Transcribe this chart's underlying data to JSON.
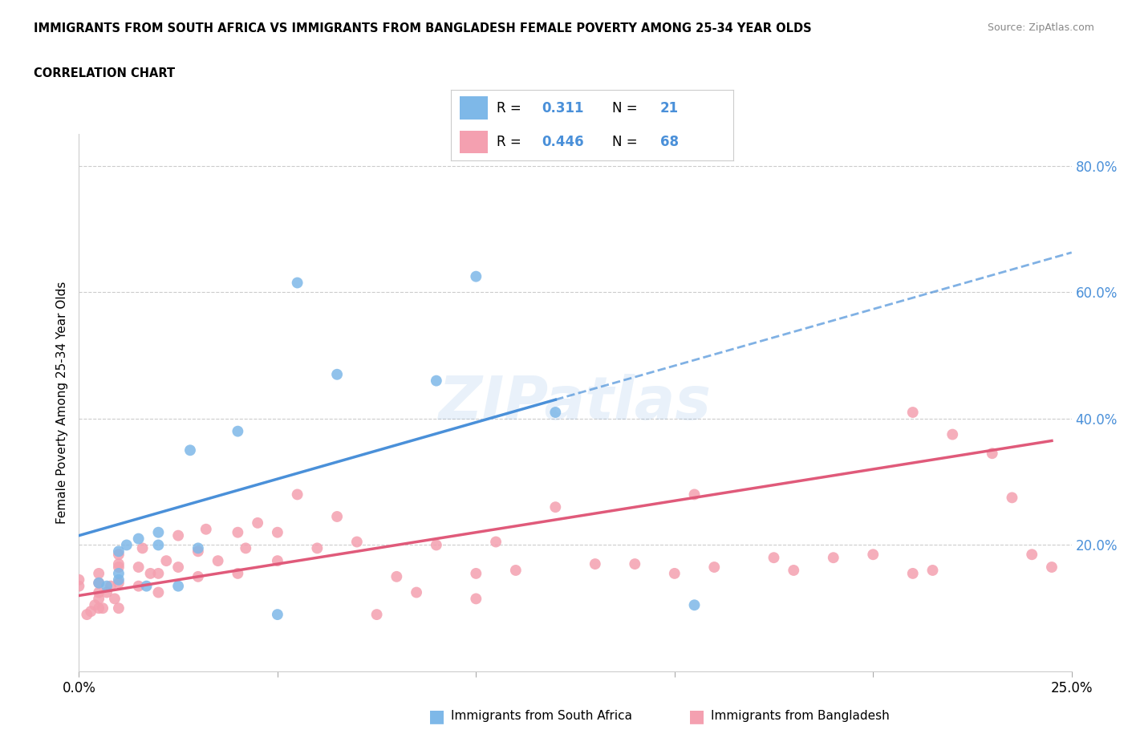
{
  "title": "IMMIGRANTS FROM SOUTH AFRICA VS IMMIGRANTS FROM BANGLADESH FEMALE POVERTY AMONG 25-34 YEAR OLDS",
  "subtitle": "CORRELATION CHART",
  "source": "Source: ZipAtlas.com",
  "ylabel": "Female Poverty Among 25-34 Year Olds",
  "xlim": [
    0.0,
    0.25
  ],
  "ylim": [
    0.0,
    0.85
  ],
  "color_sa": "#7EB8E8",
  "color_bd": "#F4A0B0",
  "trendline_sa_color": "#4A90D9",
  "trendline_bd_color": "#E05A7A",
  "watermark": "ZIPatlas",
  "legend_r_sa": "0.311",
  "legend_n_sa": "21",
  "legend_r_bd": "0.446",
  "legend_n_bd": "68",
  "sa_trendline_x0": 0.0,
  "sa_trendline_y0": 0.215,
  "sa_trendline_x1": 0.12,
  "sa_trendline_y1": 0.43,
  "sa_trendline_dash_x1": 0.25,
  "sa_trendline_dash_y1": 0.655,
  "bd_trendline_x0": 0.0,
  "bd_trendline_y0": 0.12,
  "bd_trendline_x1": 0.25,
  "bd_trendline_y1": 0.37,
  "sa_x": [
    0.005,
    0.007,
    0.01,
    0.01,
    0.01,
    0.012,
    0.015,
    0.017,
    0.02,
    0.02,
    0.025,
    0.028,
    0.03,
    0.04,
    0.05,
    0.055,
    0.065,
    0.09,
    0.1,
    0.12,
    0.155
  ],
  "sa_y": [
    0.14,
    0.135,
    0.145,
    0.155,
    0.19,
    0.2,
    0.21,
    0.135,
    0.2,
    0.22,
    0.135,
    0.35,
    0.195,
    0.38,
    0.09,
    0.615,
    0.47,
    0.46,
    0.625,
    0.41,
    0.105
  ],
  "bd_x": [
    0.0,
    0.0,
    0.002,
    0.003,
    0.004,
    0.005,
    0.005,
    0.005,
    0.005,
    0.005,
    0.006,
    0.007,
    0.008,
    0.009,
    0.01,
    0.01,
    0.01,
    0.01,
    0.01,
    0.015,
    0.015,
    0.016,
    0.018,
    0.02,
    0.02,
    0.022,
    0.025,
    0.025,
    0.03,
    0.03,
    0.032,
    0.035,
    0.04,
    0.04,
    0.042,
    0.045,
    0.05,
    0.05,
    0.055,
    0.06,
    0.065,
    0.07,
    0.075,
    0.08,
    0.085,
    0.09,
    0.1,
    0.1,
    0.105,
    0.11,
    0.12,
    0.13,
    0.14,
    0.15,
    0.155,
    0.16,
    0.175,
    0.18,
    0.19,
    0.2,
    0.21,
    0.21,
    0.215,
    0.22,
    0.23,
    0.235,
    0.24,
    0.245
  ],
  "bd_y": [
    0.135,
    0.145,
    0.09,
    0.095,
    0.105,
    0.1,
    0.115,
    0.125,
    0.14,
    0.155,
    0.1,
    0.125,
    0.135,
    0.115,
    0.1,
    0.14,
    0.165,
    0.17,
    0.185,
    0.135,
    0.165,
    0.195,
    0.155,
    0.125,
    0.155,
    0.175,
    0.165,
    0.215,
    0.15,
    0.19,
    0.225,
    0.175,
    0.155,
    0.22,
    0.195,
    0.235,
    0.175,
    0.22,
    0.28,
    0.195,
    0.245,
    0.205,
    0.09,
    0.15,
    0.125,
    0.2,
    0.115,
    0.155,
    0.205,
    0.16,
    0.26,
    0.17,
    0.17,
    0.155,
    0.28,
    0.165,
    0.18,
    0.16,
    0.18,
    0.185,
    0.155,
    0.41,
    0.16,
    0.375,
    0.345,
    0.275,
    0.185,
    0.165
  ]
}
